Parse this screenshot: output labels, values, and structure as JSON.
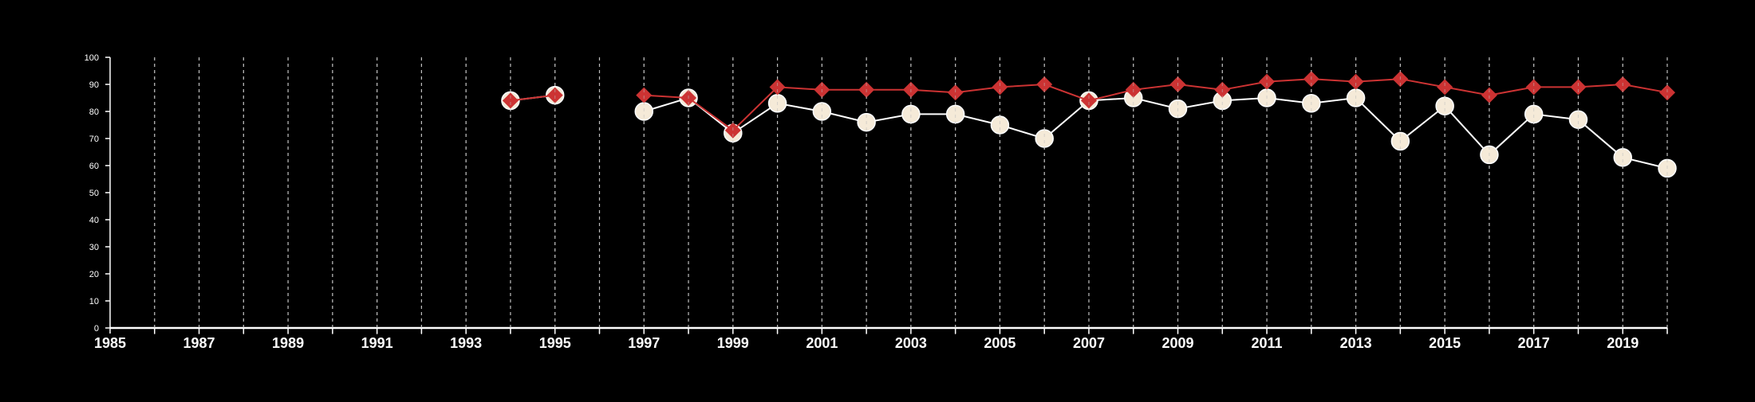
{
  "colors": {
    "background": "#000000",
    "axis": "#ffffff",
    "grid": "#bdbdbd",
    "series_a": "#cc3333",
    "series_b": "#f5ead8",
    "series_b_stroke": "#ffffff"
  },
  "chart_data": {
    "type": "line",
    "title": "",
    "xlabel": "",
    "ylabel": "",
    "xlim": [
      1985,
      2020
    ],
    "ylim": [
      0,
      100
    ],
    "x_ticks": [
      1985,
      1987,
      1989,
      1991,
      1993,
      1995,
      1997,
      1999,
      2001,
      2003,
      2005,
      2007,
      2009,
      2011,
      2013,
      2015,
      2017,
      2019
    ],
    "x_tick_labels": [
      "1985",
      "1987",
      "1989",
      "1991",
      "1993",
      "1995",
      "1997",
      "1999",
      "2001",
      "2003",
      "2005",
      "2007",
      "2009",
      "2011",
      "2013",
      "2015",
      "2017",
      "2019"
    ],
    "y_ticks": [
      0,
      10,
      20,
      30,
      40,
      50,
      60,
      70,
      80,
      90,
      100
    ],
    "y_tick_labels": [
      "0",
      "10",
      "20",
      "30",
      "40",
      "50",
      "60",
      "70",
      "80",
      "90",
      "100"
    ],
    "vertical_grid": "dashed, every year",
    "legend": "none",
    "series": [
      {
        "marker": "diamond",
        "color": "#cc3333",
        "points": [
          [
            1994,
            84
          ],
          [
            1995,
            86
          ],
          [
            1997,
            86
          ],
          [
            1998,
            85
          ],
          [
            1999,
            73
          ],
          [
            2000,
            89
          ],
          [
            2001,
            88
          ],
          [
            2002,
            88
          ],
          [
            2003,
            88
          ],
          [
            2004,
            87
          ],
          [
            2005,
            89
          ],
          [
            2006,
            90
          ],
          [
            2007,
            84
          ],
          [
            2008,
            88
          ],
          [
            2009,
            90
          ],
          [
            2010,
            88
          ],
          [
            2011,
            91
          ],
          [
            2012,
            92
          ],
          [
            2013,
            91
          ],
          [
            2014,
            92
          ],
          [
            2015,
            89
          ],
          [
            2016,
            86
          ],
          [
            2017,
            89
          ],
          [
            2018,
            89
          ],
          [
            2019,
            90
          ],
          [
            2020,
            87
          ]
        ]
      },
      {
        "marker": "circle",
        "color": "#f5ead8",
        "points": [
          [
            1994,
            84
          ],
          [
            1995,
            86
          ],
          [
            1997,
            80
          ],
          [
            1998,
            85
          ],
          [
            1999,
            72
          ],
          [
            2000,
            83
          ],
          [
            2001,
            80
          ],
          [
            2002,
            76
          ],
          [
            2003,
            79
          ],
          [
            2004,
            79
          ],
          [
            2005,
            75
          ],
          [
            2006,
            70
          ],
          [
            2007,
            84
          ],
          [
            2008,
            85
          ],
          [
            2009,
            81
          ],
          [
            2010,
            84
          ],
          [
            2011,
            85
          ],
          [
            2012,
            83
          ],
          [
            2013,
            85
          ],
          [
            2014,
            69
          ],
          [
            2015,
            82
          ],
          [
            2016,
            64
          ],
          [
            2017,
            79
          ],
          [
            2018,
            77
          ],
          [
            2019,
            63
          ],
          [
            2020,
            59
          ]
        ]
      }
    ]
  }
}
